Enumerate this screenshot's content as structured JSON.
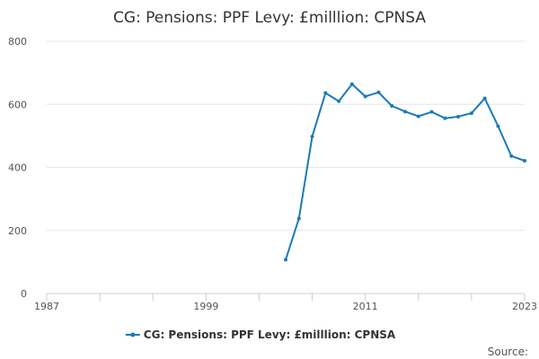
{
  "chart_data": {
    "type": "line",
    "title": "CG: Pensions: PPF Levy: £milllion: CPNSA",
    "x_ticks": [
      "1987",
      "1999",
      "2011",
      "2023"
    ],
    "y_ticks": [
      "0",
      "200",
      "400",
      "600",
      "800"
    ],
    "xlim": [
      1987,
      2023
    ],
    "ylim": [
      0,
      800
    ],
    "grid": true,
    "legend_position": "bottom",
    "series": [
      {
        "name": "CG: Pensions: PPF Levy: £milllion: CPNSA",
        "color": "#1a7ab8",
        "x": [
          2005,
          2006,
          2007,
          2008,
          2009,
          2010,
          2011,
          2012,
          2013,
          2014,
          2015,
          2016,
          2017,
          2018,
          2019,
          2020,
          2021,
          2022,
          2023
        ],
        "y": [
          107,
          238,
          498,
          636,
          610,
          664,
          625,
          638,
          595,
          577,
          562,
          576,
          556,
          561,
          572,
          619,
          531,
          436,
          421
        ]
      }
    ]
  },
  "source_label": "Source:"
}
